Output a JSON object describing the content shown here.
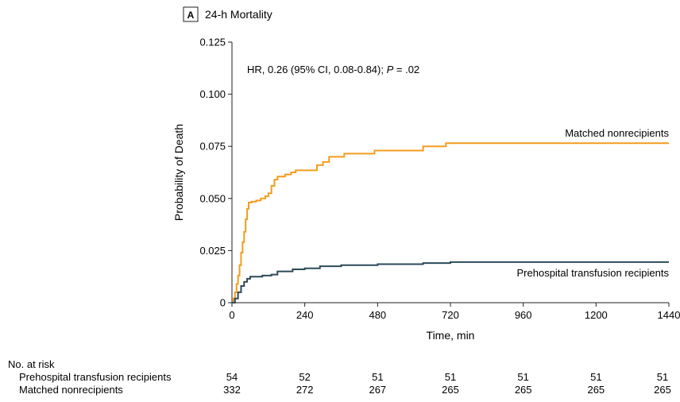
{
  "panel": {
    "letter": "A",
    "title": "24-h Mortality"
  },
  "annotation": {
    "prefix": "HR, 0.26 (95% CI, 0.08-0.84); ",
    "p_symbol": "P",
    "suffix": " = .02"
  },
  "colors": {
    "nonrecipients": "#f39c1f",
    "recipients": "#2c4a5a",
    "axis": "#231f20"
  },
  "risk_table": {
    "header": "No. at risk",
    "rows": [
      {
        "label": "Prehospital transfusion recipients",
        "values": [
          "54",
          "52",
          "51",
          "51",
          "51",
          "51",
          "51"
        ]
      },
      {
        "label": "Matched nonrecipients",
        "values": [
          "332",
          "272",
          "267",
          "265",
          "265",
          "265",
          "265"
        ]
      }
    ]
  },
  "chart_data": {
    "type": "line",
    "title": "24-h Mortality",
    "xlabel": "Time, min",
    "ylabel": "Probability of Death",
    "xlim": [
      0,
      1440
    ],
    "ylim": [
      0,
      0.125
    ],
    "x_ticks": [
      0,
      240,
      480,
      720,
      960,
      1200,
      1440
    ],
    "x_tick_labels": [
      "0",
      "240",
      "480",
      "720",
      "960",
      "1200",
      "1440"
    ],
    "y_ticks": [
      0,
      0.025,
      0.05,
      0.075,
      0.1,
      0.125
    ],
    "y_tick_labels": [
      "0",
      "0.025",
      "0.050",
      "0.075",
      "0.100",
      "0.125"
    ],
    "grid": false,
    "series": [
      {
        "name": "Matched nonrecipients",
        "step": true,
        "points": [
          [
            0,
            0
          ],
          [
            5,
            0.002
          ],
          [
            10,
            0.005
          ],
          [
            15,
            0.009
          ],
          [
            20,
            0.013
          ],
          [
            25,
            0.018
          ],
          [
            30,
            0.024
          ],
          [
            35,
            0.029
          ],
          [
            40,
            0.034
          ],
          [
            45,
            0.04
          ],
          [
            50,
            0.045
          ],
          [
            55,
            0.048
          ],
          [
            65,
            0.0485
          ],
          [
            80,
            0.049
          ],
          [
            95,
            0.05
          ],
          [
            110,
            0.051
          ],
          [
            120,
            0.0525
          ],
          [
            130,
            0.056
          ],
          [
            140,
            0.059
          ],
          [
            150,
            0.0605
          ],
          [
            175,
            0.0615
          ],
          [
            195,
            0.0625
          ],
          [
            210,
            0.0635
          ],
          [
            280,
            0.066
          ],
          [
            300,
            0.0675
          ],
          [
            320,
            0.07
          ],
          [
            370,
            0.0715
          ],
          [
            470,
            0.073
          ],
          [
            630,
            0.075
          ],
          [
            705,
            0.0765
          ],
          [
            1440,
            0.0765
          ]
        ]
      },
      {
        "name": "Prehospital transfusion recipients",
        "step": true,
        "points": [
          [
            0,
            0
          ],
          [
            10,
            0.002
          ],
          [
            20,
            0.005
          ],
          [
            30,
            0.008
          ],
          [
            40,
            0.01
          ],
          [
            50,
            0.0115
          ],
          [
            60,
            0.0125
          ],
          [
            100,
            0.013
          ],
          [
            130,
            0.0135
          ],
          [
            150,
            0.015
          ],
          [
            200,
            0.016
          ],
          [
            240,
            0.0165
          ],
          [
            290,
            0.0175
          ],
          [
            360,
            0.018
          ],
          [
            480,
            0.0185
          ],
          [
            630,
            0.019
          ],
          [
            720,
            0.0195
          ],
          [
            1440,
            0.0195
          ]
        ]
      }
    ]
  }
}
